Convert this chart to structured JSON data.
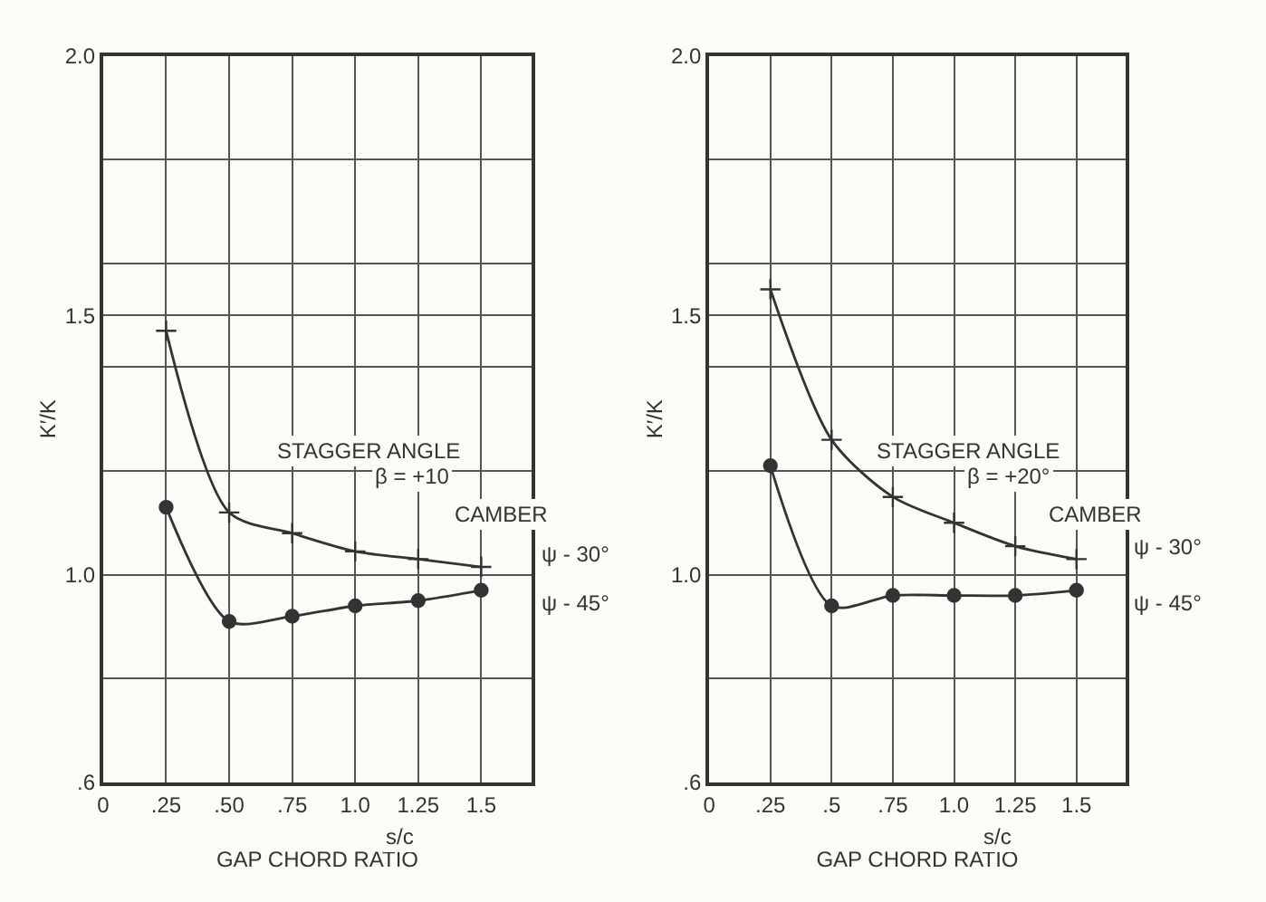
{
  "chart_data": [
    {
      "type": "line",
      "xlabel": "GAP CHORD RATIO",
      "ylabel": "K′/K",
      "xlim": [
        0,
        1.7
      ],
      "ylim": [
        0.6,
        2.0
      ],
      "xticks": [
        {
          "value": 0,
          "label": "0"
        },
        {
          "value": 0.25,
          "label": ".25"
        },
        {
          "value": 0.5,
          "label": ".50"
        },
        {
          "value": 0.75,
          "label": ".75"
        },
        {
          "value": 1.0,
          "label": "1.0"
        },
        {
          "value": 1.25,
          "label": "1.25"
        },
        {
          "value": 1.5,
          "label": "1.5"
        }
      ],
      "yticks": [
        {
          "value": 0.6,
          "label": ".6"
        },
        {
          "value": 0.8,
          "label": null
        },
        {
          "value": 1.0,
          "label": "1.0"
        },
        {
          "value": 1.2,
          "label": null
        },
        {
          "value": 1.4,
          "label": null
        },
        {
          "value": 1.5,
          "label": "1.5"
        },
        {
          "value": 1.6,
          "label": null
        },
        {
          "value": 1.8,
          "label": null
        },
        {
          "value": 2.0,
          "label": "2.0"
        }
      ],
      "grid": true,
      "line_style": "solid",
      "annotations": [
        "STAGGER ANGLE",
        "β = +10",
        "CAMBER",
        "s/c"
      ],
      "series": [
        {
          "name": "ψ - 30°",
          "color": "#333333",
          "marker": "cross",
          "x": [
            0.25,
            0.5,
            0.75,
            1.0,
            1.25,
            1.5
          ],
          "values": [
            1.47,
            1.12,
            1.08,
            1.045,
            1.03,
            1.015
          ]
        },
        {
          "name": "ψ - 45°",
          "color": "#333333",
          "marker": "circle",
          "x": [
            0.25,
            0.5,
            0.75,
            1.0,
            1.25,
            1.5
          ],
          "values": [
            1.13,
            0.91,
            0.92,
            0.94,
            0.95,
            0.97
          ]
        }
      ]
    },
    {
      "type": "line",
      "xlabel": "GAP CHORD RATIO",
      "ylabel": "K′/K",
      "xlim": [
        0,
        1.7
      ],
      "ylim": [
        0.6,
        2.0
      ],
      "xticks": [
        {
          "value": 0,
          "label": "0"
        },
        {
          "value": 0.25,
          "label": ".25"
        },
        {
          "value": 0.5,
          "label": ".5"
        },
        {
          "value": 0.75,
          "label": ".75"
        },
        {
          "value": 1.0,
          "label": "1.0"
        },
        {
          "value": 1.25,
          "label": "1.25"
        },
        {
          "value": 1.5,
          "label": "1.5"
        }
      ],
      "yticks": [
        {
          "value": 0.6,
          "label": ".6"
        },
        {
          "value": 0.8,
          "label": null
        },
        {
          "value": 1.0,
          "label": "1.0"
        },
        {
          "value": 1.2,
          "label": null
        },
        {
          "value": 1.4,
          "label": null
        },
        {
          "value": 1.5,
          "label": "1.5"
        },
        {
          "value": 1.6,
          "label": null
        },
        {
          "value": 1.8,
          "label": null
        },
        {
          "value": 2.0,
          "label": "2.0"
        }
      ],
      "grid": true,
      "line_style": "solid",
      "annotations": [
        "STAGGER ANGLE",
        "β = +20°",
        "CAMBER",
        "s/c"
      ],
      "series": [
        {
          "name": "ψ - 30°",
          "color": "#333333",
          "marker": "cross",
          "x": [
            0.25,
            0.5,
            0.75,
            1.0,
            1.25,
            1.5
          ],
          "values": [
            1.55,
            1.26,
            1.15,
            1.1,
            1.055,
            1.03
          ]
        },
        {
          "name": "ψ - 45°",
          "color": "#333333",
          "marker": "circle",
          "x": [
            0.25,
            0.5,
            0.75,
            1.0,
            1.25,
            1.5
          ],
          "values": [
            1.21,
            0.94,
            0.96,
            0.96,
            0.96,
            0.97
          ]
        }
      ]
    }
  ]
}
